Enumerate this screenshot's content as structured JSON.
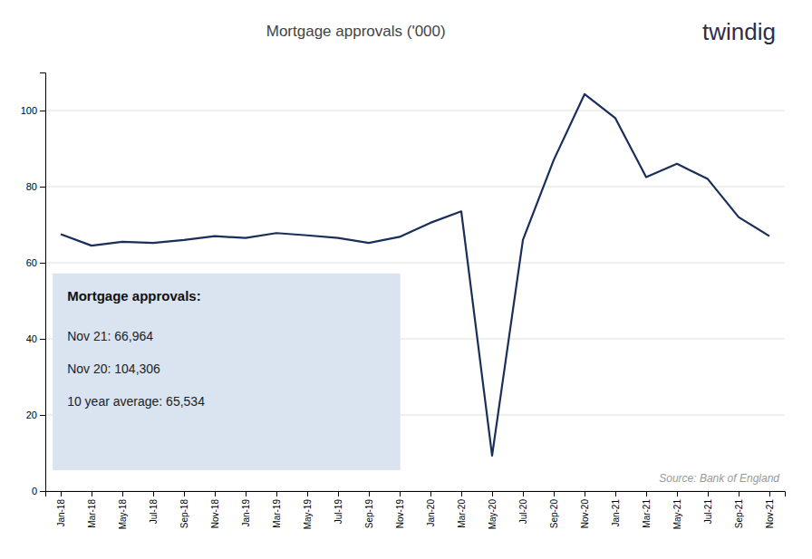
{
  "chart_data": {
    "type": "line",
    "title": "Mortgage approvals ('000)",
    "logo": {
      "text": "twindig",
      "color": "#2d2d4e"
    },
    "source": "Source: Bank of England",
    "annotation": {
      "title": "Mortgage approvals:",
      "lines": [
        "Nov 21: 66,964",
        "Nov 20: 104,306",
        "10 year average: 65,534"
      ],
      "color": "#d9e4f0"
    },
    "color": "#1a2e5a",
    "categories": [
      "Jan-18",
      "Mar-18",
      "May-18",
      "Jul-18",
      "Sep-18",
      "Nov-18",
      "Jan-19",
      "Mar-19",
      "May-19",
      "Jul-19",
      "Sep-19",
      "Nov-19",
      "Jan-20",
      "Mar-20",
      "May-20",
      "Jul-20",
      "Sep-20",
      "Nov-20",
      "Jan-21",
      "Mar-21",
      "May-21",
      "Jul-21",
      "Sep-21",
      "Nov-21"
    ],
    "values": [
      67.5,
      64.5,
      65.5,
      65.2,
      66.0,
      67.0,
      66.5,
      67.8,
      67.2,
      66.5,
      65.2,
      66.8,
      70.5,
      73.5,
      9.3,
      66.0,
      87.0,
      104.3,
      98.0,
      82.5,
      86.0,
      82.0,
      72.0,
      67.0
    ],
    "ylim": [
      0,
      110
    ],
    "yticks": [
      0,
      20,
      40,
      60,
      80,
      100
    ],
    "grid": true
  }
}
